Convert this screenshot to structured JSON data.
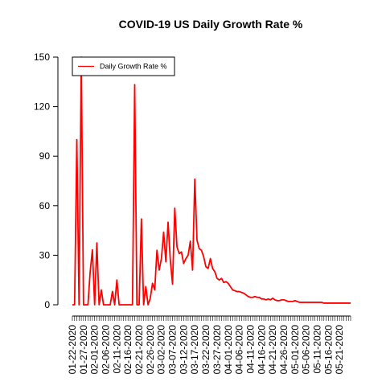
{
  "chart_data": {
    "type": "line",
    "title": "COVID-19 US Daily Growth Rate %",
    "xlabel": "",
    "ylabel": "",
    "ylim": [
      0,
      150
    ],
    "yticks": [
      0,
      30,
      60,
      90,
      120,
      150
    ],
    "x_start": "01-22-2020",
    "x_tick_labels": [
      "01-22-2020",
      "01-27-2020",
      "02-01-2020",
      "02-06-2020",
      "02-11-2020",
      "02-16-2020",
      "02-21-2020",
      "02-26-2020",
      "03-02-2020",
      "03-07-2020",
      "03-12-2020",
      "03-17-2020",
      "03-22-2020",
      "03-27-2020",
      "04-01-2020",
      "04-06-2020",
      "04-11-2020",
      "04-16-2020",
      "04-21-2020",
      "04-26-2020",
      "05-01-2020",
      "05-06-2020",
      "05-11-2020",
      "05-16-2020",
      "05-21-2020"
    ],
    "legend": {
      "position": "top-left",
      "entries": [
        "Daily Growth Rate %"
      ]
    },
    "series": [
      {
        "name": "Daily Growth Rate %",
        "color": "#ff0000",
        "x": [
          "01-22-2020",
          "01-23-2020",
          "01-24-2020",
          "01-25-2020",
          "01-26-2020",
          "01-27-2020",
          "01-28-2020",
          "01-29-2020",
          "01-30-2020",
          "01-31-2020",
          "02-01-2020",
          "02-02-2020",
          "02-03-2020",
          "02-04-2020",
          "02-05-2020",
          "02-06-2020",
          "02-07-2020",
          "02-08-2020",
          "02-09-2020",
          "02-10-2020",
          "02-11-2020",
          "02-12-2020",
          "02-13-2020",
          "02-14-2020",
          "02-15-2020",
          "02-16-2020",
          "02-17-2020",
          "02-18-2020",
          "02-19-2020",
          "02-20-2020",
          "02-21-2020",
          "02-22-2020",
          "02-23-2020",
          "02-24-2020",
          "02-25-2020",
          "02-26-2020",
          "02-27-2020",
          "02-28-2020",
          "02-29-2020",
          "03-01-2020",
          "03-02-2020",
          "03-03-2020",
          "03-04-2020",
          "03-05-2020",
          "03-06-2020",
          "03-07-2020",
          "03-08-2020",
          "03-09-2020",
          "03-10-2020",
          "03-11-2020",
          "03-12-2020",
          "03-13-2020",
          "03-14-2020",
          "03-15-2020",
          "03-16-2020",
          "03-17-2020",
          "03-18-2020",
          "03-19-2020",
          "03-20-2020",
          "03-21-2020",
          "03-22-2020",
          "03-23-2020",
          "03-24-2020",
          "03-25-2020",
          "03-26-2020",
          "03-27-2020",
          "03-28-2020",
          "03-29-2020",
          "03-30-2020",
          "03-31-2020",
          "04-01-2020",
          "04-02-2020",
          "04-03-2020",
          "04-04-2020",
          "04-05-2020",
          "04-06-2020",
          "04-07-2020",
          "04-08-2020",
          "04-09-2020",
          "04-10-2020",
          "04-11-2020",
          "04-12-2020",
          "04-13-2020",
          "04-14-2020",
          "04-15-2020",
          "04-16-2020",
          "04-17-2020",
          "04-18-2020",
          "04-19-2020",
          "04-20-2020",
          "04-21-2020",
          "04-22-2020",
          "04-23-2020",
          "04-24-2020",
          "04-25-2020",
          "04-26-2020",
          "04-27-2020",
          "04-28-2020",
          "04-29-2020",
          "04-30-2020",
          "05-01-2020",
          "05-02-2020",
          "05-03-2020",
          "05-04-2020",
          "05-05-2020",
          "05-06-2020",
          "05-07-2020",
          "05-08-2020",
          "05-09-2020",
          "05-10-2020",
          "05-11-2020",
          "05-12-2020",
          "05-13-2020",
          "05-14-2020",
          "05-15-2020",
          "05-16-2020",
          "05-17-2020",
          "05-18-2020",
          "05-19-2020",
          "05-20-2020",
          "05-21-2020",
          "05-22-2020",
          "05-23-2020",
          "05-24-2020",
          "05-25-2020",
          "05-26-2020"
        ],
        "values": [
          0,
          0,
          100,
          0,
          150,
          0,
          0,
          0,
          20,
          33.3,
          0,
          37.5,
          0,
          9,
          0,
          0,
          0,
          0,
          8,
          0,
          15,
          0,
          0,
          0,
          0,
          0,
          0,
          0,
          133.3,
          0,
          0,
          52,
          0,
          11,
          0,
          4,
          13,
          9,
          33,
          21,
          28,
          44,
          26,
          50,
          27,
          12.5,
          58.5,
          35,
          31,
          32,
          25,
          28,
          30,
          38.5,
          21,
          76,
          39,
          34,
          33,
          29,
          23,
          22,
          28,
          22,
          20,
          16,
          15,
          16,
          13.5,
          14,
          13,
          11,
          9,
          8.5,
          8,
          8,
          7.5,
          7,
          6,
          5,
          4.5,
          4.5,
          5,
          4.5,
          4.5,
          3.5,
          3.5,
          3,
          3.5,
          3,
          4,
          3,
          2.5,
          2.5,
          3,
          3,
          2.5,
          2,
          2,
          2,
          2.5,
          2,
          1.5,
          1.5,
          1.5,
          1.5,
          1.5,
          1.5,
          1.5,
          1.5,
          1.5,
          1.5,
          1.5,
          1,
          1,
          1,
          1,
          1,
          1,
          1,
          1,
          1,
          1,
          1,
          1,
          1
        ]
      }
    ]
  }
}
